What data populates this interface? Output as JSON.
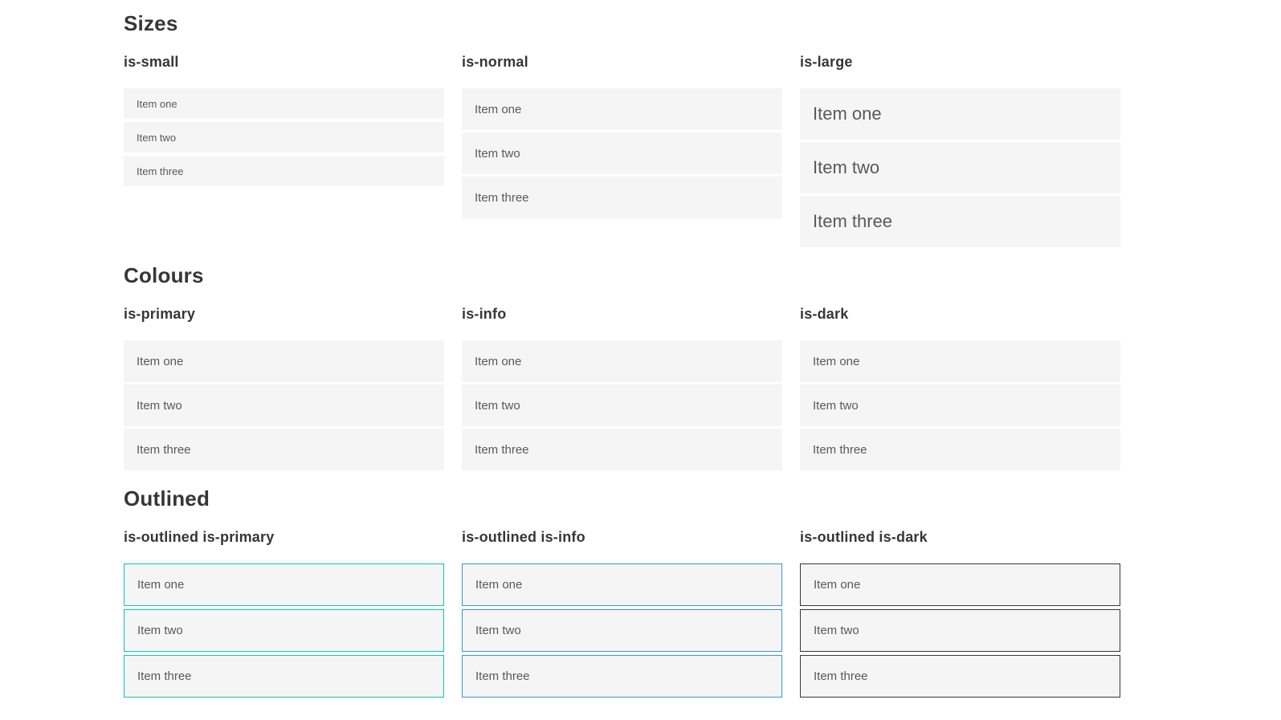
{
  "colors": {
    "primary": "#0bc7b2",
    "info": "#3697dc",
    "dark": "#363636",
    "dark_text": "#4a4a4a",
    "item_bg": "#f5f5f5",
    "item_text": "#595959",
    "heading_text": "#363636",
    "white": "#ffffff"
  },
  "sections": [
    {
      "title": "Sizes",
      "groups": [
        {
          "label": "is-small",
          "items": [
            "Item one",
            "Item two",
            "Item three"
          ]
        },
        {
          "label": "is-normal",
          "items": [
            "Item one",
            "Item two",
            "Item three"
          ]
        },
        {
          "label": "is-large",
          "items": [
            "Item one",
            "Item two",
            "Item three"
          ]
        }
      ]
    },
    {
      "title": "Colours",
      "groups": [
        {
          "label": "is-primary",
          "items": [
            "Item one",
            "Item two",
            "Item three"
          ]
        },
        {
          "label": "is-info",
          "items": [
            "Item one",
            "Item two",
            "Item three"
          ]
        },
        {
          "label": "is-dark",
          "items": [
            "Item one",
            "Item two",
            "Item three"
          ]
        }
      ]
    },
    {
      "title": "Outlined",
      "groups": [
        {
          "label": "is-outlined is-primary",
          "items": [
            "Item one",
            "Item two",
            "Item three"
          ]
        },
        {
          "label": "is-outlined is-info",
          "items": [
            "Item one",
            "Item two",
            "Item three"
          ]
        },
        {
          "label": "is-outlined is-dark",
          "items": [
            "Item one",
            "Item two",
            "Item three"
          ]
        }
      ]
    }
  ]
}
